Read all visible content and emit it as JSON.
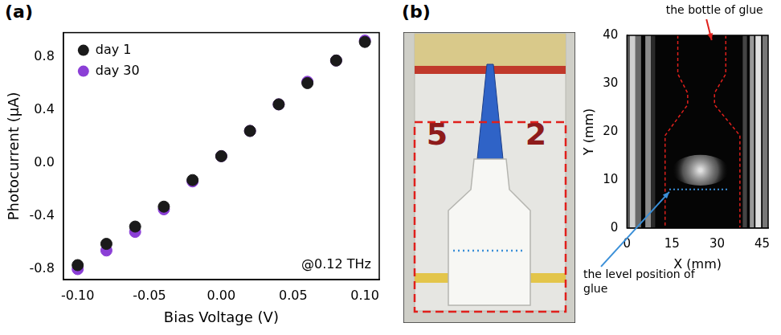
{
  "panels": [
    "(a)",
    "(b)"
  ],
  "chart_data": [
    {
      "type": "scatter",
      "x_label": "Bias Voltage (V)",
      "y_label": "Photocurrent (μA)",
      "annotation": "@0.12 THz",
      "x": [
        -0.1,
        -0.08,
        -0.06,
        -0.04,
        -0.02,
        0,
        0.02,
        0.04,
        0.06,
        0.08,
        0.1
      ],
      "series": [
        {
          "name": "day 1",
          "color": "#1a1a1a",
          "marker": "circle",
          "values": [
            -0.77,
            -0.61,
            -0.48,
            -0.33,
            -0.13,
            0.05,
            0.24,
            0.44,
            0.6,
            0.77,
            0.91
          ]
        },
        {
          "name": "day 30",
          "color": "#8b3fd6",
          "marker": "circle",
          "values": [
            -0.8,
            -0.66,
            -0.52,
            -0.35,
            -0.14,
            0.05,
            0.24,
            0.44,
            0.61,
            0.77,
            0.92
          ]
        }
      ],
      "xlim": [
        -0.11,
        0.11
      ],
      "xticks": [
        {
          "value": -0.1,
          "label": "-0.10"
        },
        -0.05,
        {
          "value": 0,
          "label": "0.00"
        },
        0.05,
        {
          "value": 0.1,
          "label": "0.10"
        }
      ],
      "ylim": [
        -0.88,
        0.98
      ],
      "yticks": [
        -0.8,
        -0.4,
        {
          "value": 0,
          "label": "0.0"
        },
        0.4,
        0.8
      ],
      "grid": false,
      "legend": "upper left"
    },
    {
      "type": "image",
      "x_label": "X (mm)",
      "y_label": "Y (mm)",
      "annotations": [
        "the bottle of glue",
        "the level position of glue"
      ],
      "xlim": [
        0,
        47
      ],
      "ylim": [
        0,
        40
      ],
      "xticks": [
        0,
        15,
        30,
        45
      ],
      "yticks": [
        0,
        10,
        20,
        30,
        40
      ],
      "grid": false
    }
  ],
  "photo": {
    "texts": [
      "5",
      "2"
    ]
  }
}
